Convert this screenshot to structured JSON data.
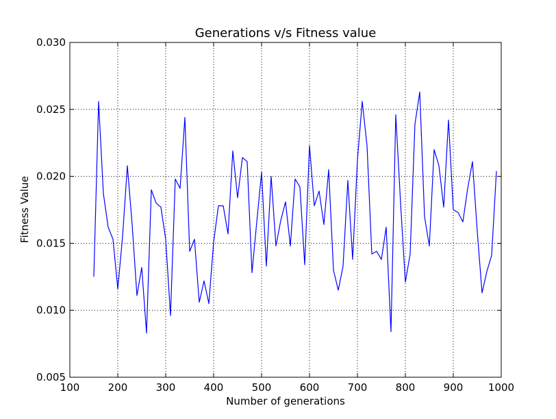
{
  "chart_data": {
    "type": "line",
    "title": "Generations v/s Fitness value",
    "xlabel": "Number of generations",
    "ylabel": "Fitness Value",
    "xlim": [
      100,
      1000
    ],
    "ylim": [
      0.005,
      0.03
    ],
    "x_ticks": [
      100,
      200,
      300,
      400,
      500,
      600,
      700,
      800,
      900,
      1000
    ],
    "x_tick_labels": [
      "100",
      "200",
      "300",
      "400",
      "500",
      "600",
      "700",
      "800",
      "900",
      "1000"
    ],
    "y_ticks": [
      0.005,
      0.01,
      0.015,
      0.02,
      0.025,
      0.03
    ],
    "y_tick_labels": [
      "0.005",
      "0.010",
      "0.015",
      "0.020",
      "0.025",
      "0.030"
    ],
    "grid": true,
    "line_color": "#0000ff",
    "series": [
      {
        "x": [
          150,
          160,
          170,
          180,
          190,
          200,
          210,
          220,
          230,
          240,
          250,
          260,
          270,
          280,
          290,
          300,
          310,
          320,
          330,
          340,
          350,
          360,
          370,
          380,
          390,
          400,
          410,
          420,
          430,
          440,
          450,
          460,
          470,
          480,
          490,
          500,
          510,
          520,
          530,
          540,
          550,
          560,
          570,
          580,
          590,
          600,
          610,
          620,
          630,
          640,
          650,
          660,
          670,
          680,
          690,
          700,
          710,
          720,
          730,
          740,
          750,
          760,
          770,
          780,
          790,
          800,
          810,
          820,
          830,
          840,
          850,
          860,
          870,
          880,
          890,
          900,
          910,
          920,
          930,
          940,
          950,
          960,
          970,
          980,
          990
        ],
        "y": [
          0.0125,
          0.0256,
          0.0187,
          0.0162,
          0.0153,
          0.0116,
          0.0155,
          0.0208,
          0.0164,
          0.0111,
          0.0132,
          0.0083,
          0.019,
          0.018,
          0.0177,
          0.0153,
          0.0096,
          0.0198,
          0.0191,
          0.0244,
          0.0144,
          0.0153,
          0.0106,
          0.0122,
          0.0105,
          0.0151,
          0.0178,
          0.0178,
          0.0157,
          0.0219,
          0.0184,
          0.0214,
          0.0211,
          0.0128,
          0.0166,
          0.0203,
          0.0133,
          0.02,
          0.0148,
          0.0167,
          0.0181,
          0.0148,
          0.0198,
          0.0192,
          0.0134,
          0.0223,
          0.0178,
          0.0189,
          0.0164,
          0.0205,
          0.013,
          0.0115,
          0.0133,
          0.0197,
          0.0138,
          0.0212,
          0.0256,
          0.0223,
          0.0142,
          0.0144,
          0.0138,
          0.0162,
          0.0084,
          0.0246,
          0.018,
          0.0121,
          0.0142,
          0.0239,
          0.0263,
          0.017,
          0.0148,
          0.022,
          0.0208,
          0.0177,
          0.0242,
          0.0175,
          0.0173,
          0.0166,
          0.0191,
          0.0211,
          0.0159,
          0.0113,
          0.0129,
          0.0141,
          0.0204
        ]
      }
    ]
  }
}
